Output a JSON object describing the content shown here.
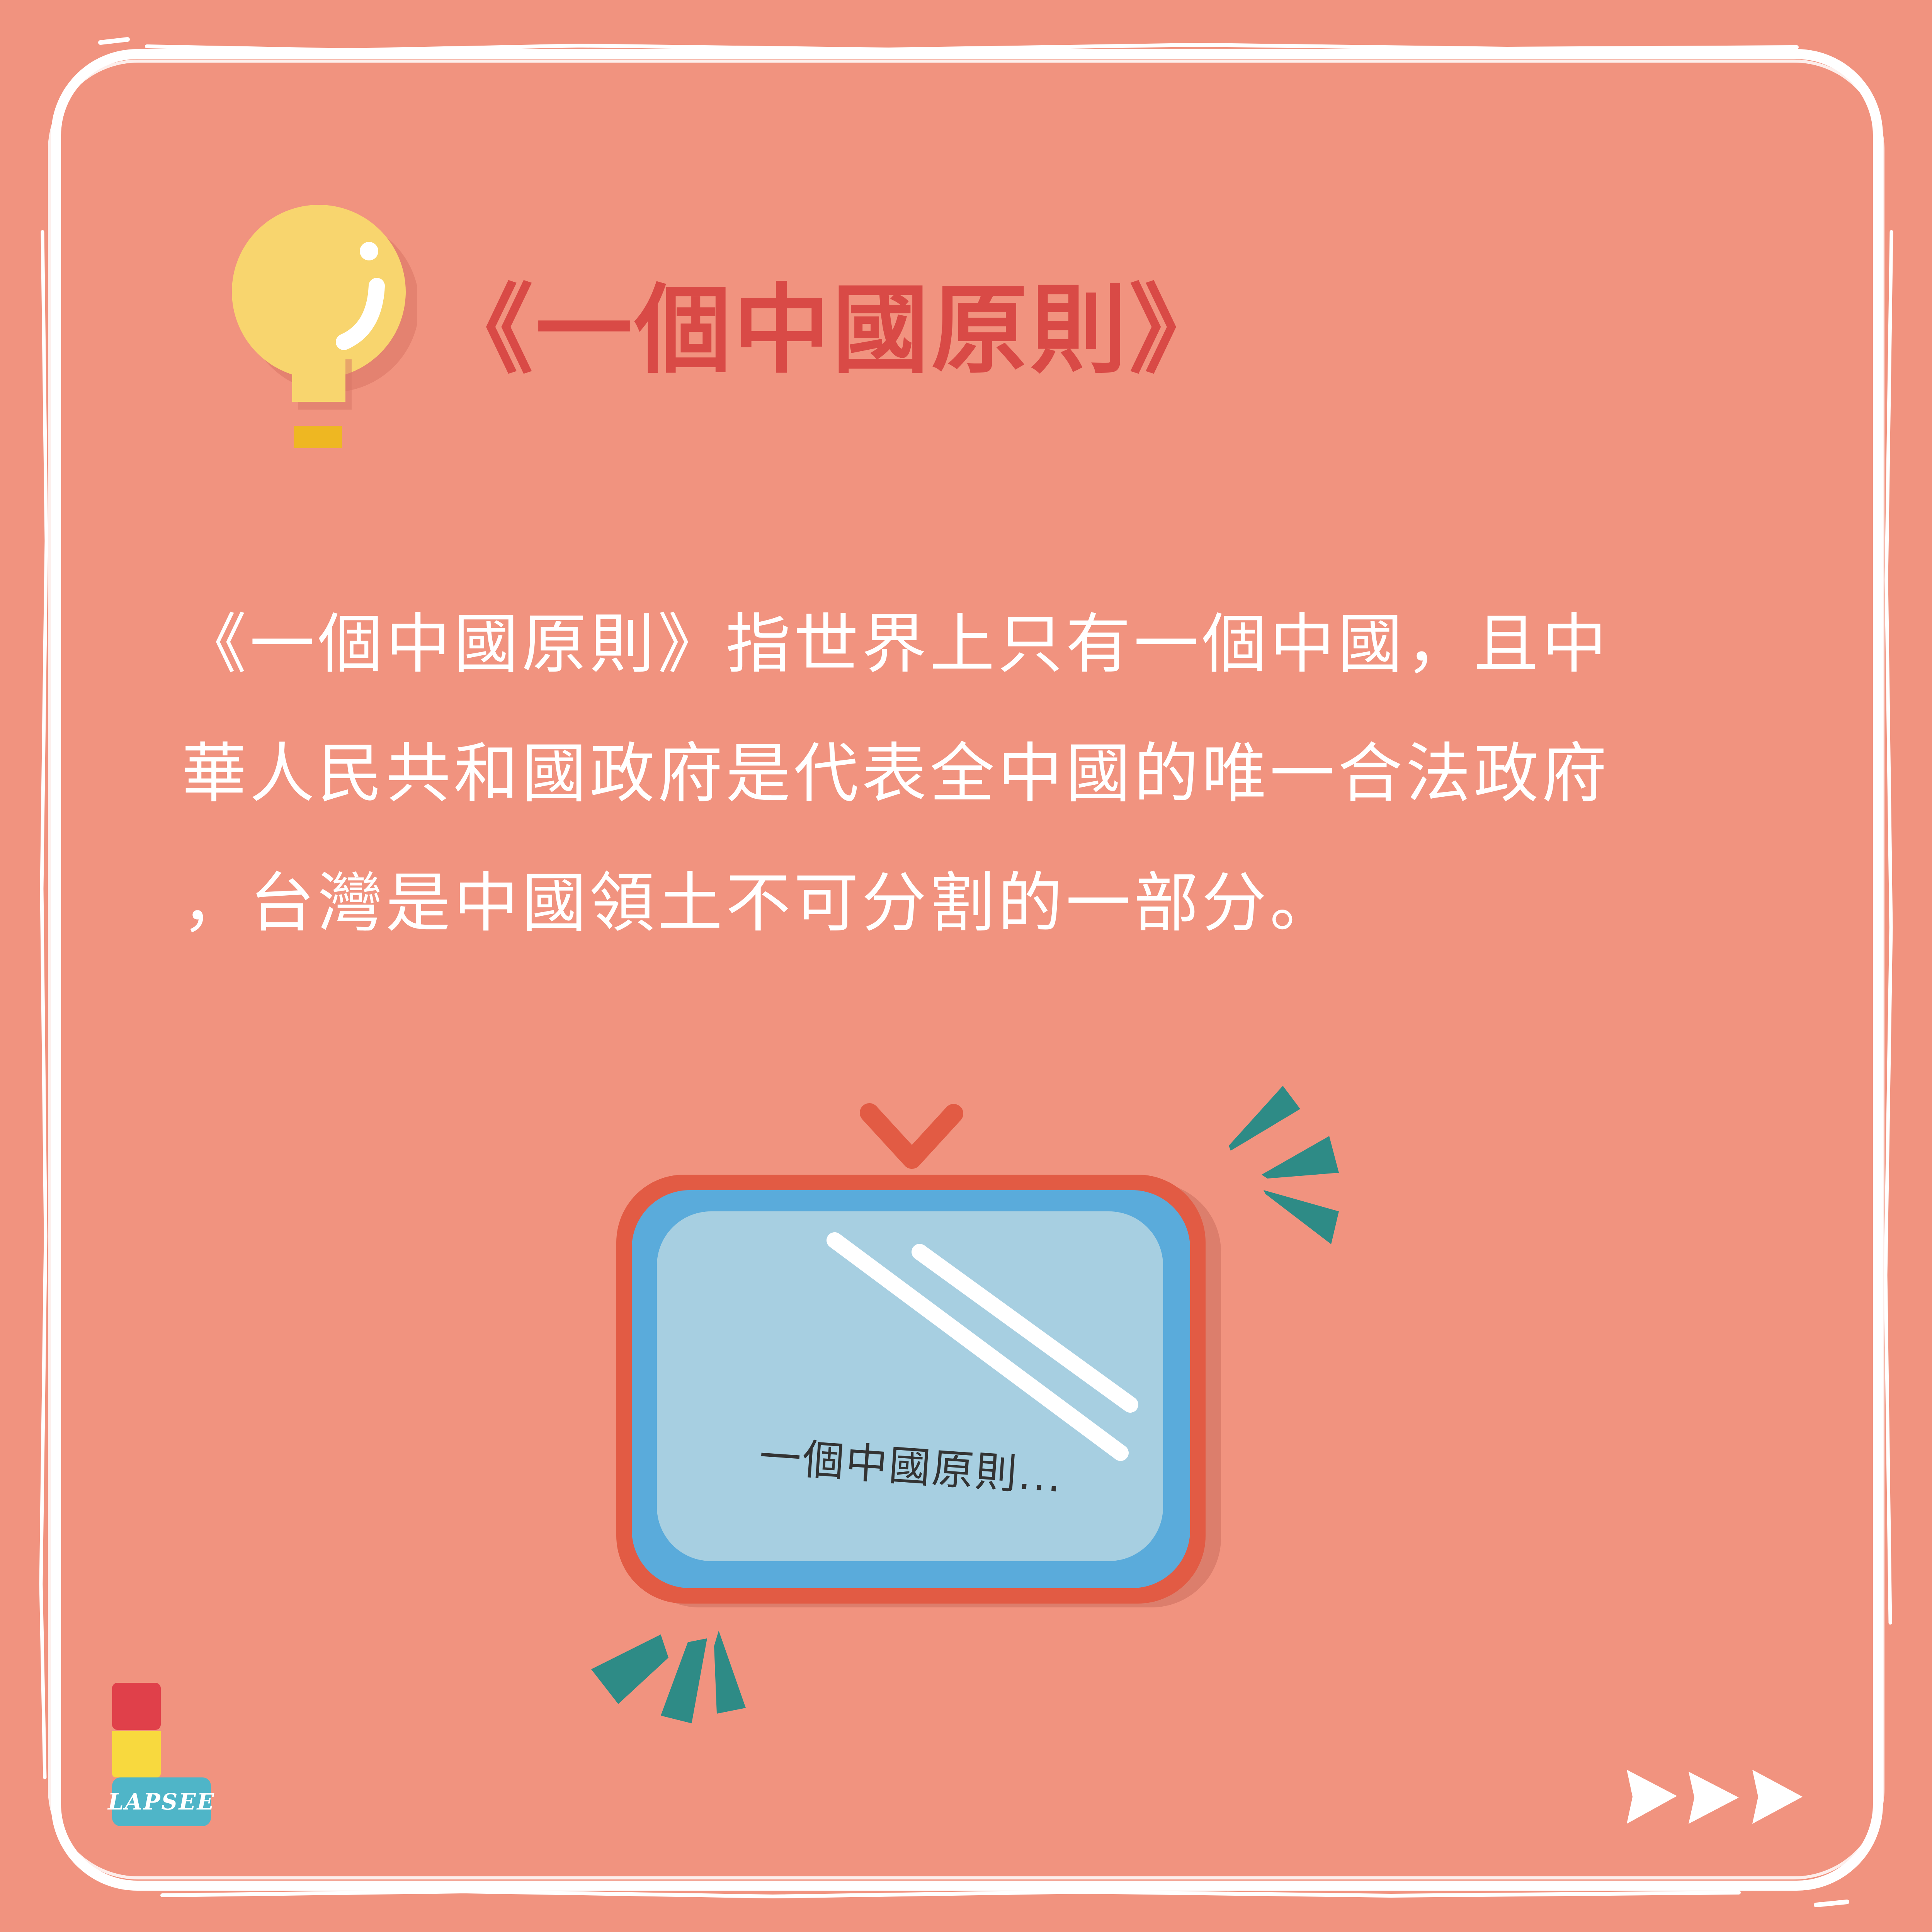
{
  "title": "《一個中國原則》",
  "body": {
    "lines": [
      "《一個中國原則》指世界上只有一個中國，且中",
      "華人民共和國政府是代表全中國的唯一合法政府",
      "，台灣是中國領土不可分割的一部分。"
    ]
  },
  "tv": {
    "caption": "一個中國原則..."
  },
  "brand": {
    "name": "LAPSEE"
  },
  "icons": {
    "bulb": "lightbulb-icon",
    "tv": "television-icon",
    "next": "next-arrows-icon",
    "logo": "lapsee-logo-icon"
  },
  "colors": {
    "background": "#f1937f",
    "title": "#d94a46",
    "bulb": "#f8d56e",
    "tv_frame": "#e25b44",
    "tv_body": "#5aabdb",
    "tv_screen": "#a7cfe1",
    "accent": "#2e8b86"
  }
}
